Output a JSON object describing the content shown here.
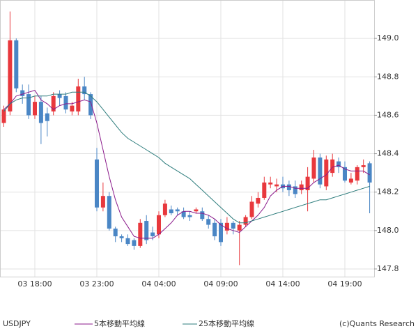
{
  "chart_data": {
    "type": "candlestick",
    "title": "USDJPY",
    "credit": "(c)Quants Research",
    "categories": [
      null,
      null,
      null,
      null,
      null,
      "03 18:00",
      null,
      null,
      null,
      null,
      null,
      null,
      null,
      null,
      null,
      "03 23:00",
      null,
      null,
      null,
      null,
      null,
      null,
      null,
      null,
      null,
      "04 04:00",
      null,
      null,
      null,
      null,
      null,
      null,
      null,
      null,
      null,
      "04 09:00",
      null,
      null,
      null,
      null,
      null,
      null,
      null,
      null,
      null,
      "04 14:00",
      null,
      null,
      null,
      null,
      null,
      null,
      null,
      null,
      null,
      "04 19:00",
      null,
      null,
      null,
      null
    ],
    "open": [
      148.56,
      148.62,
      148.99,
      148.73,
      148.71,
      148.6,
      148.67,
      148.61,
      148.62,
      148.71,
      148.7,
      148.62,
      148.62,
      148.75,
      148.71,
      148.37,
      148.12,
      148.18,
      148.01,
      147.97,
      147.96,
      147.95,
      147.92,
      148.05,
      147.99,
      147.98,
      148.08,
      148.11,
      148.11,
      148.1,
      148.08,
      148.1,
      148.1,
      148.06,
      148.04,
      148.04,
      148.0,
      148.04,
      148.0,
      148.03,
      148.07,
      148.14,
      148.17,
      148.24,
      148.23,
      148.24,
      148.24,
      148.23,
      148.21,
      148.21,
      148.27,
      148.38,
      148.23,
      148.3,
      148.36,
      148.33,
      148.25,
      148.26,
      148.33,
      148.35
    ],
    "high": [
      148.65,
      149.14,
      149.0,
      148.76,
      148.76,
      148.7,
      148.7,
      148.64,
      148.72,
      148.73,
      148.72,
      148.67,
      148.79,
      148.8,
      148.72,
      148.43,
      148.25,
      148.2,
      148.02,
      147.98,
      147.98,
      147.96,
      148.06,
      148.08,
      148.02,
      148.1,
      148.16,
      148.13,
      148.12,
      148.12,
      148.1,
      148.12,
      148.12,
      148.08,
      148.06,
      148.06,
      148.07,
      148.05,
      148.05,
      148.08,
      148.18,
      148.2,
      148.28,
      148.28,
      148.27,
      148.28,
      148.26,
      148.26,
      148.26,
      148.33,
      148.42,
      148.4,
      148.39,
      148.4,
      148.38,
      148.36,
      148.3,
      148.34,
      148.37,
      148.36
    ],
    "low": [
      148.54,
      148.6,
      148.72,
      148.66,
      148.58,
      148.58,
      148.45,
      148.49,
      148.6,
      148.65,
      148.61,
      148.6,
      148.6,
      148.68,
      148.58,
      148.1,
      148.1,
      148.0,
      147.94,
      147.94,
      147.92,
      147.9,
      147.91,
      147.93,
      147.95,
      147.96,
      148.07,
      148.08,
      148.08,
      148.06,
      148.05,
      148.09,
      148.05,
      148.01,
      147.95,
      147.92,
      147.98,
      147.98,
      147.82,
      148.02,
      148.06,
      148.12,
      148.16,
      148.22,
      148.2,
      148.2,
      148.18,
      148.17,
      148.19,
      148.1,
      148.25,
      148.22,
      148.21,
      148.28,
      148.3,
      148.25,
      148.24,
      148.24,
      148.3,
      148.09
    ],
    "close": [
      148.63,
      148.99,
      148.74,
      148.7,
      148.6,
      148.67,
      148.56,
      148.57,
      148.7,
      148.69,
      148.63,
      148.65,
      148.75,
      148.71,
      148.6,
      148.12,
      148.18,
      148.01,
      147.97,
      147.96,
      147.93,
      147.92,
      148.04,
      147.95,
      147.97,
      148.08,
      148.14,
      148.09,
      148.1,
      148.07,
      148.07,
      148.11,
      148.06,
      148.03,
      147.97,
      147.94,
      148.04,
      148.01,
      148.03,
      148.07,
      148.15,
      148.17,
      148.25,
      148.25,
      148.24,
      148.22,
      148.21,
      148.19,
      148.24,
      148.28,
      148.38,
      148.24,
      148.37,
      148.37,
      148.33,
      148.26,
      148.27,
      148.33,
      148.34,
      148.25
    ],
    "up_color": "#e8383d",
    "down_color": "#4a86c5",
    "series": [
      {
        "name": "5本移動平均線",
        "color": "#8b1a8b",
        "values": [
          148.63,
          148.66,
          148.7,
          148.71,
          148.72,
          148.73,
          148.68,
          148.66,
          148.63,
          148.65,
          148.66,
          148.66,
          148.67,
          148.68,
          148.67,
          148.56,
          148.42,
          148.28,
          148.16,
          148.07,
          148.02,
          147.97,
          147.96,
          147.96,
          147.96,
          147.98,
          148.01,
          148.04,
          148.08,
          148.1,
          148.1,
          148.09,
          148.09,
          148.08,
          148.06,
          148.03,
          148.01,
          148.0,
          147.99,
          148.02,
          148.05,
          148.08,
          148.12,
          148.18,
          148.21,
          148.23,
          148.23,
          148.22,
          148.22,
          148.22,
          148.25,
          148.27,
          148.29,
          148.33,
          148.34,
          148.32,
          148.31,
          148.31,
          148.31,
          148.29
        ]
      },
      {
        "name": "25本移動平均線",
        "color": "#2e7d7d",
        "values": [
          148.62,
          148.66,
          148.68,
          148.69,
          148.69,
          148.7,
          148.7,
          148.7,
          148.71,
          148.71,
          148.71,
          148.72,
          148.72,
          148.72,
          148.7,
          148.67,
          148.63,
          148.59,
          148.55,
          148.51,
          148.48,
          148.46,
          148.44,
          148.42,
          148.4,
          148.38,
          148.35,
          148.33,
          148.31,
          148.29,
          148.27,
          148.24,
          148.21,
          148.18,
          148.15,
          148.12,
          148.09,
          148.06,
          148.04,
          148.04,
          148.05,
          148.06,
          148.07,
          148.08,
          148.09,
          148.1,
          148.11,
          148.12,
          148.13,
          148.14,
          148.15,
          148.16,
          148.16,
          148.17,
          148.18,
          148.19,
          148.2,
          148.21,
          148.22,
          148.23
        ]
      }
    ],
    "ylim": [
      147.76,
      149.2
    ],
    "yticks": [
      {
        "value": 147.8,
        "label": "147.8"
      },
      {
        "value": 148.0,
        "label": "148.0"
      },
      148.2,
      148.4,
      148.6,
      148.8,
      {
        "value": 149.0,
        "label": "149.0"
      }
    ],
    "grid": true
  }
}
